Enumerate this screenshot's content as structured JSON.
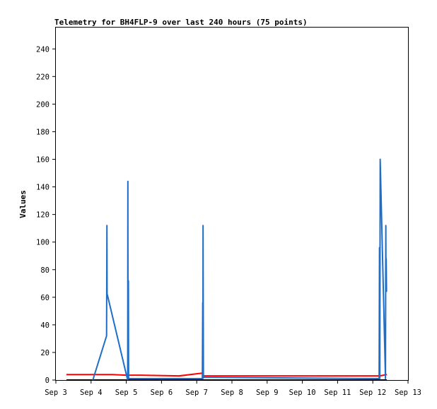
{
  "chart_data": {
    "type": "line",
    "title": "Telemetry for BH4FLP-9 over last 240 hours (75 points)",
    "xlabel": "",
    "ylabel": "Values",
    "x_unit": "day-of-September",
    "xlim": [
      3,
      13
    ],
    "ylim": [
      0,
      256
    ],
    "y_ticks": [
      0,
      20,
      40,
      60,
      80,
      100,
      120,
      140,
      160,
      180,
      200,
      220,
      240
    ],
    "y_tick_labels": [
      "0",
      "20",
      "40",
      "60",
      "80",
      "100",
      "120",
      "140",
      "160",
      "180",
      "200",
      "220",
      "240"
    ],
    "x_ticks": [
      3,
      4,
      5,
      6,
      7,
      8,
      9,
      10,
      11,
      12,
      13
    ],
    "x_tick_labels": [
      "Sep 3",
      "Sep 4",
      "Sep 5",
      "Sep 6",
      "Sep 7",
      "Sep 8",
      "Sep 9",
      "Sep 10",
      "Sep 11",
      "Sep 12",
      "Sep 13"
    ],
    "grid": false,
    "legend": "none",
    "series": [
      {
        "color": "#000000",
        "x": [
          3.3,
          4.05,
          4.45,
          5.05,
          5.1,
          7.15,
          7.2,
          12.2,
          12.4
        ],
        "y": [
          0,
          0,
          0,
          0,
          0,
          0,
          0,
          0,
          0
        ]
      },
      {
        "color": "#ff0000",
        "x": [
          3.3,
          3.95,
          4.6,
          5.0,
          5.4,
          6.5,
          7.15,
          7.2,
          8.5,
          10.0,
          12.2,
          12.4
        ],
        "y": [
          4,
          4,
          4,
          3.5,
          3.5,
          3,
          5,
          3,
          3,
          3,
          3,
          4
        ]
      },
      {
        "color": "#1e6ec8",
        "x": [
          4.05,
          4.44,
          4.45,
          4.455,
          4.46,
          5.02,
          5.04,
          5.045,
          5.05,
          5.06,
          5.065,
          5.07,
          7.16,
          7.17,
          7.175,
          7.18,
          7.19,
          12.18,
          12.19,
          12.2,
          12.21,
          12.36,
          12.37,
          12.375,
          12.38,
          12.39
        ],
        "y": [
          0,
          32,
          112,
          62,
          62,
          2,
          0,
          144,
          1,
          72,
          1,
          1,
          1,
          56,
          1,
          112,
          2,
          1,
          96,
          1,
          160,
          1,
          112,
          64,
          88,
          64
        ]
      }
    ]
  }
}
